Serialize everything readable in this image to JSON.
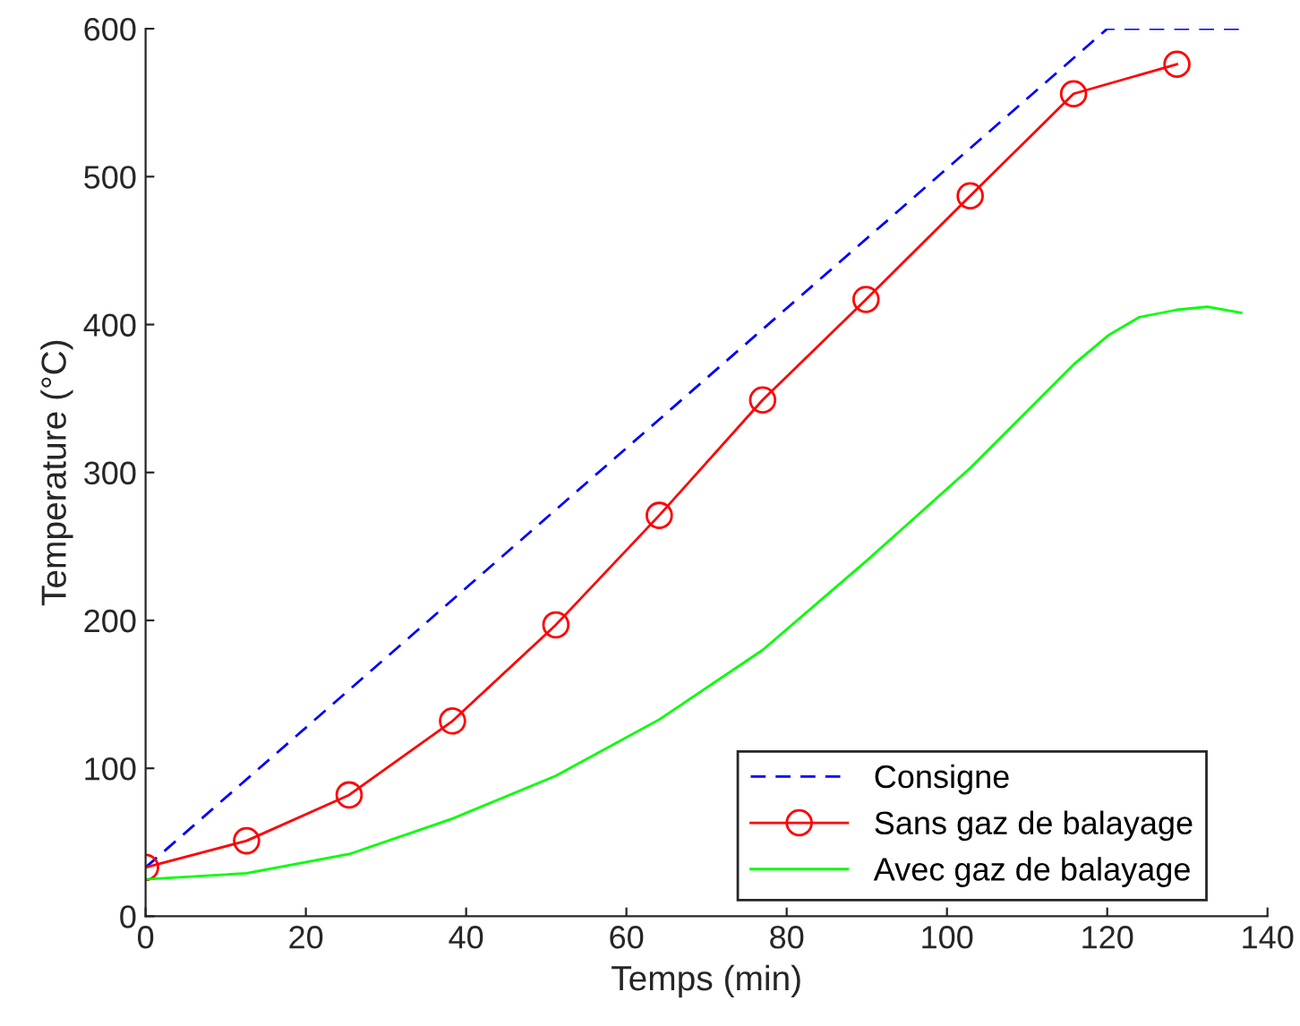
{
  "chart_data": {
    "type": "line",
    "xlabel": "Temps (min)",
    "ylabel": "Temperature (°C)",
    "xlim": [
      0,
      140
    ],
    "ylim": [
      0,
      600
    ],
    "xticks": [
      0,
      20,
      40,
      60,
      80,
      100,
      120,
      140
    ],
    "yticks": [
      0,
      100,
      200,
      300,
      400,
      500,
      600
    ],
    "grid": false,
    "legend": "bottom right",
    "series": [
      {
        "name": "Consigne",
        "color": "#0000ff",
        "line_style": "dashed",
        "marker": "none",
        "x": [
          0,
          120,
          136.7
        ],
        "values": [
          33,
          600,
          600
        ]
      },
      {
        "name": "Sans gaz de balayage",
        "color": "#ff0000",
        "line_style": "solid",
        "marker": "circle",
        "x": [
          0,
          12.6,
          25.4,
          38.3,
          51.2,
          64.1,
          77.0,
          89.9,
          102.9,
          115.8,
          128.7
        ],
        "values": [
          33,
          51,
          82,
          132,
          197,
          271,
          349,
          417,
          487,
          556,
          576
        ]
      },
      {
        "name": "Avec gaz de balayage",
        "color": "#00ff00",
        "line_style": "solid",
        "marker": "none",
        "x": [
          0,
          12.6,
          25.4,
          38.3,
          51.2,
          64.1,
          77.0,
          89.9,
          102.9,
          115.8,
          120.2,
          124,
          128.7,
          132.5,
          136.7
        ],
        "values": [
          25,
          29,
          42,
          66,
          95,
          133,
          180,
          240,
          303,
          373,
          393,
          405,
          410,
          412,
          408
        ]
      }
    ]
  }
}
